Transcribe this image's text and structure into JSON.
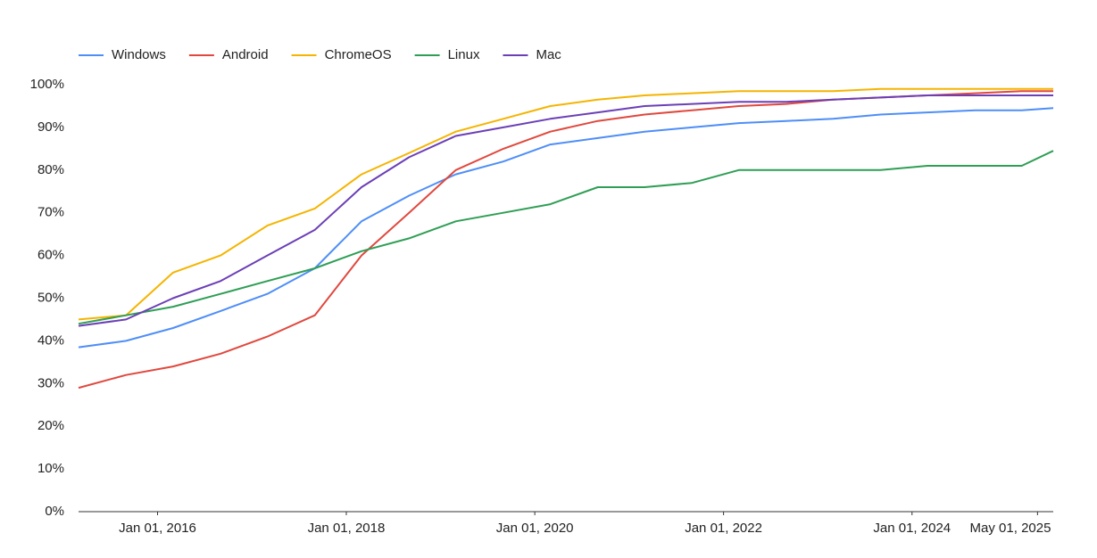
{
  "chart_data": {
    "type": "line",
    "x": [
      "2015-03-01",
      "2015-09-01",
      "2016-03-01",
      "2016-09-01",
      "2017-03-01",
      "2017-09-01",
      "2018-03-01",
      "2018-09-01",
      "2019-03-01",
      "2019-09-01",
      "2020-03-01",
      "2020-09-01",
      "2021-03-01",
      "2021-09-01",
      "2022-03-01",
      "2022-09-01",
      "2023-03-01",
      "2023-09-01",
      "2024-03-01",
      "2024-09-01",
      "2025-03-01",
      "2025-07-01"
    ],
    "series": [
      {
        "name": "Windows",
        "color": "#4e8ef7",
        "values": [
          38.5,
          40,
          43,
          47,
          51,
          57,
          68,
          74,
          79,
          82,
          86,
          87.5,
          89,
          90,
          91,
          91.5,
          92,
          93,
          93.5,
          94,
          94,
          94.5
        ]
      },
      {
        "name": "Android",
        "color": "#e0483e",
        "values": [
          29,
          32,
          34,
          37,
          41,
          46,
          60,
          70,
          80,
          85,
          89,
          91.5,
          93,
          94,
          95,
          95.5,
          96.5,
          97,
          97.5,
          98,
          98.5,
          98.5
        ]
      },
      {
        "name": "ChromeOS",
        "color": "#f5b400",
        "values": [
          45,
          46,
          56,
          60,
          67,
          71,
          79,
          84,
          89,
          92,
          95,
          96.5,
          97.5,
          98,
          98.5,
          98.5,
          98.5,
          99,
          99,
          99,
          99,
          99
        ]
      },
      {
        "name": "Linux",
        "color": "#2f9e55",
        "values": [
          44,
          46,
          48,
          51,
          54,
          57,
          61,
          64,
          68,
          70,
          72,
          76,
          76,
          77,
          80,
          80,
          80,
          80,
          81,
          81,
          81,
          84.5
        ]
      },
      {
        "name": "Mac",
        "color": "#6b3fb6",
        "values": [
          43.5,
          45,
          50,
          54,
          60,
          66,
          76,
          83,
          88,
          90,
          92,
          93.5,
          95,
          95.5,
          96,
          96,
          96.5,
          97,
          97.5,
          97.5,
          97.5,
          97.5
        ]
      }
    ],
    "xlim": [
      "2015-03-01",
      "2025-07-01"
    ],
    "xticks": [
      {
        "value": "2016-01-01",
        "label": "Jan 01, 2016"
      },
      {
        "value": "2018-01-01",
        "label": "Jan 01, 2018"
      },
      {
        "value": "2020-01-01",
        "label": "Jan 01, 2020"
      },
      {
        "value": "2022-01-01",
        "label": "Jan 01, 2022"
      },
      {
        "value": "2024-01-01",
        "label": "Jan 01, 2024"
      },
      {
        "value": "2025-05-01",
        "label": "May 01, 2025"
      }
    ],
    "ylim": [
      0,
      100
    ],
    "yticks": [
      {
        "value": 0,
        "label": "0%"
      },
      {
        "value": 10,
        "label": "10%"
      },
      {
        "value": 20,
        "label": "20%"
      },
      {
        "value": 30,
        "label": "30%"
      },
      {
        "value": 40,
        "label": "40%"
      },
      {
        "value": 50,
        "label": "50%"
      },
      {
        "value": 60,
        "label": "60%"
      },
      {
        "value": 70,
        "label": "70%"
      },
      {
        "value": 80,
        "label": "80%"
      },
      {
        "value": 90,
        "label": "90%"
      },
      {
        "value": 100,
        "label": "100%"
      }
    ],
    "grid": false,
    "legend": "top-left"
  }
}
